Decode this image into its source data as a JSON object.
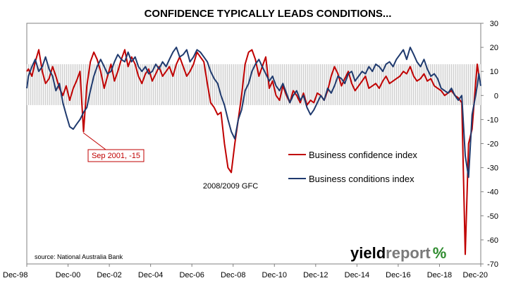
{
  "chart_data": {
    "type": "line",
    "title": "CONFIDENCE TYPICALLY LEADS CONDITIONS...",
    "x_tick_labels": [
      "Dec-98",
      "Dec-00",
      "Dec-02",
      "Dec-04",
      "Dec-06",
      "Dec-08",
      "Dec-10",
      "Dec-12",
      "Dec-14",
      "Dec-16",
      "Dec-18",
      "Dec-20"
    ],
    "x_ticks": [
      1998.92,
      2000.92,
      2002.92,
      2004.92,
      2006.92,
      2008.92,
      2010.92,
      2012.92,
      2014.92,
      2016.92,
      2018.92,
      2020.92
    ],
    "xlim": [
      1998.92,
      2020.92
    ],
    "ylim": [
      -70,
      30
    ],
    "y_ticks": [
      30,
      20,
      10,
      0,
      -10,
      -20,
      -30,
      -40,
      -50,
      -60,
      -70
    ],
    "y_axis_side": "right",
    "grid": "none",
    "legend_placement": "center-right",
    "series": [
      {
        "name": "Business confidence index",
        "color": "#c00000",
        "points": [
          [
            1998.92,
            10
          ],
          [
            1999.0,
            11
          ],
          [
            1999.17,
            8
          ],
          [
            1999.33,
            14
          ],
          [
            1999.5,
            19
          ],
          [
            1999.67,
            10
          ],
          [
            1999.83,
            5
          ],
          [
            2000.0,
            7
          ],
          [
            2000.17,
            12
          ],
          [
            2000.33,
            8
          ],
          [
            2000.5,
            3
          ],
          [
            2000.67,
            0
          ],
          [
            2000.83,
            4
          ],
          [
            2001.0,
            -2
          ],
          [
            2001.17,
            3
          ],
          [
            2001.33,
            6
          ],
          [
            2001.5,
            10
          ],
          [
            2001.67,
            -15
          ],
          [
            2001.83,
            4
          ],
          [
            2002.0,
            14
          ],
          [
            2002.17,
            18
          ],
          [
            2002.33,
            15
          ],
          [
            2002.5,
            10
          ],
          [
            2002.67,
            3
          ],
          [
            2002.83,
            8
          ],
          [
            2003.0,
            13
          ],
          [
            2003.17,
            6
          ],
          [
            2003.33,
            10
          ],
          [
            2003.5,
            15
          ],
          [
            2003.67,
            19
          ],
          [
            2003.83,
            12
          ],
          [
            2004.0,
            16
          ],
          [
            2004.17,
            13
          ],
          [
            2004.33,
            8
          ],
          [
            2004.5,
            5
          ],
          [
            2004.67,
            9
          ],
          [
            2004.83,
            11
          ],
          [
            2005.0,
            6
          ],
          [
            2005.17,
            9
          ],
          [
            2005.33,
            12
          ],
          [
            2005.5,
            8
          ],
          [
            2005.67,
            10
          ],
          [
            2005.83,
            12
          ],
          [
            2006.0,
            8
          ],
          [
            2006.17,
            13
          ],
          [
            2006.33,
            16
          ],
          [
            2006.5,
            12
          ],
          [
            2006.67,
            8
          ],
          [
            2006.83,
            10
          ],
          [
            2007.0,
            13
          ],
          [
            2007.17,
            18
          ],
          [
            2007.33,
            16
          ],
          [
            2007.5,
            14
          ],
          [
            2007.67,
            5
          ],
          [
            2007.83,
            -3
          ],
          [
            2008.0,
            -5
          ],
          [
            2008.17,
            -8
          ],
          [
            2008.33,
            -7
          ],
          [
            2008.5,
            -20
          ],
          [
            2008.67,
            -30
          ],
          [
            2008.83,
            -32
          ],
          [
            2009.0,
            -20
          ],
          [
            2009.17,
            -10
          ],
          [
            2009.33,
            0
          ],
          [
            2009.5,
            13
          ],
          [
            2009.67,
            18
          ],
          [
            2009.83,
            19
          ],
          [
            2010.0,
            15
          ],
          [
            2010.17,
            8
          ],
          [
            2010.33,
            12
          ],
          [
            2010.5,
            16
          ],
          [
            2010.67,
            3
          ],
          [
            2010.83,
            6
          ],
          [
            2011.0,
            0
          ],
          [
            2011.17,
            -2
          ],
          [
            2011.33,
            4
          ],
          [
            2011.5,
            0
          ],
          [
            2011.67,
            -3
          ],
          [
            2011.83,
            2
          ],
          [
            2012.0,
            0
          ],
          [
            2012.17,
            -3
          ],
          [
            2012.33,
            1
          ],
          [
            2012.5,
            -4
          ],
          [
            2012.67,
            -2
          ],
          [
            2012.83,
            -3
          ],
          [
            2013.0,
            1
          ],
          [
            2013.17,
            0
          ],
          [
            2013.33,
            -2
          ],
          [
            2013.5,
            2
          ],
          [
            2013.67,
            8
          ],
          [
            2013.83,
            12
          ],
          [
            2014.0,
            9
          ],
          [
            2014.17,
            4
          ],
          [
            2014.33,
            7
          ],
          [
            2014.5,
            10
          ],
          [
            2014.67,
            5
          ],
          [
            2014.83,
            2
          ],
          [
            2015.0,
            4
          ],
          [
            2015.17,
            6
          ],
          [
            2015.33,
            8
          ],
          [
            2015.5,
            3
          ],
          [
            2015.67,
            4
          ],
          [
            2015.83,
            5
          ],
          [
            2016.0,
            3
          ],
          [
            2016.17,
            6
          ],
          [
            2016.33,
            8
          ],
          [
            2016.5,
            5
          ],
          [
            2016.67,
            6
          ],
          [
            2016.83,
            7
          ],
          [
            2017.0,
            8
          ],
          [
            2017.17,
            10
          ],
          [
            2017.33,
            9
          ],
          [
            2017.5,
            12
          ],
          [
            2017.67,
            8
          ],
          [
            2017.83,
            6
          ],
          [
            2018.0,
            7
          ],
          [
            2018.17,
            9
          ],
          [
            2018.33,
            6
          ],
          [
            2018.5,
            7
          ],
          [
            2018.67,
            4
          ],
          [
            2018.83,
            3
          ],
          [
            2019.0,
            2
          ],
          [
            2019.17,
            0
          ],
          [
            2019.33,
            1
          ],
          [
            2019.5,
            2
          ],
          [
            2019.67,
            0
          ],
          [
            2019.83,
            -1
          ],
          [
            2020.0,
            -3
          ],
          [
            2020.17,
            -66
          ],
          [
            2020.33,
            -20
          ],
          [
            2020.5,
            -14
          ],
          [
            2020.67,
            5
          ],
          [
            2020.75,
            13
          ],
          [
            2020.83,
            8
          ]
        ]
      },
      {
        "name": "Business conditions index",
        "color": "#1f3a6e",
        "points": [
          [
            1998.92,
            3
          ],
          [
            1999.0,
            8
          ],
          [
            1999.17,
            12
          ],
          [
            1999.33,
            15
          ],
          [
            1999.5,
            10
          ],
          [
            1999.67,
            12
          ],
          [
            1999.83,
            16
          ],
          [
            2000.0,
            11
          ],
          [
            2000.17,
            8
          ],
          [
            2000.33,
            2
          ],
          [
            2000.5,
            5
          ],
          [
            2000.67,
            -3
          ],
          [
            2000.83,
            -8
          ],
          [
            2001.0,
            -13
          ],
          [
            2001.17,
            -14
          ],
          [
            2001.33,
            -12
          ],
          [
            2001.5,
            -10
          ],
          [
            2001.67,
            -7
          ],
          [
            2001.83,
            -5
          ],
          [
            2002.0,
            2
          ],
          [
            2002.17,
            8
          ],
          [
            2002.33,
            12
          ],
          [
            2002.5,
            15
          ],
          [
            2002.67,
            12
          ],
          [
            2002.83,
            9
          ],
          [
            2003.0,
            10
          ],
          [
            2003.17,
            14
          ],
          [
            2003.33,
            17
          ],
          [
            2003.5,
            15
          ],
          [
            2003.67,
            14
          ],
          [
            2003.83,
            18
          ],
          [
            2004.0,
            14
          ],
          [
            2004.17,
            16
          ],
          [
            2004.33,
            12
          ],
          [
            2004.5,
            10
          ],
          [
            2004.67,
            12
          ],
          [
            2004.83,
            9
          ],
          [
            2005.0,
            10
          ],
          [
            2005.17,
            13
          ],
          [
            2005.33,
            11
          ],
          [
            2005.5,
            14
          ],
          [
            2005.67,
            12
          ],
          [
            2005.83,
            15
          ],
          [
            2006.0,
            18
          ],
          [
            2006.17,
            20
          ],
          [
            2006.33,
            16
          ],
          [
            2006.5,
            17
          ],
          [
            2006.67,
            19
          ],
          [
            2006.83,
            14
          ],
          [
            2007.0,
            16
          ],
          [
            2007.17,
            19
          ],
          [
            2007.33,
            18
          ],
          [
            2007.5,
            16
          ],
          [
            2007.67,
            14
          ],
          [
            2007.83,
            10
          ],
          [
            2008.0,
            7
          ],
          [
            2008.17,
            5
          ],
          [
            2008.33,
            0
          ],
          [
            2008.5,
            -4
          ],
          [
            2008.67,
            -10
          ],
          [
            2008.83,
            -15
          ],
          [
            2009.0,
            -18
          ],
          [
            2009.17,
            -10
          ],
          [
            2009.33,
            -6
          ],
          [
            2009.5,
            2
          ],
          [
            2009.67,
            5
          ],
          [
            2009.83,
            10
          ],
          [
            2010.0,
            13
          ],
          [
            2010.17,
            15
          ],
          [
            2010.33,
            12
          ],
          [
            2010.5,
            9
          ],
          [
            2010.67,
            6
          ],
          [
            2010.83,
            8
          ],
          [
            2011.0,
            4
          ],
          [
            2011.17,
            2
          ],
          [
            2011.33,
            5
          ],
          [
            2011.5,
            1
          ],
          [
            2011.67,
            -3
          ],
          [
            2011.83,
            0
          ],
          [
            2012.0,
            2
          ],
          [
            2012.17,
            -2
          ],
          [
            2012.33,
            0
          ],
          [
            2012.5,
            -5
          ],
          [
            2012.67,
            -8
          ],
          [
            2012.83,
            -6
          ],
          [
            2013.0,
            -3
          ],
          [
            2013.17,
            0
          ],
          [
            2013.33,
            -2
          ],
          [
            2013.5,
            3
          ],
          [
            2013.67,
            1
          ],
          [
            2013.83,
            4
          ],
          [
            2014.0,
            8
          ],
          [
            2014.17,
            7
          ],
          [
            2014.33,
            5
          ],
          [
            2014.5,
            9
          ],
          [
            2014.67,
            10
          ],
          [
            2014.83,
            6
          ],
          [
            2015.0,
            8
          ],
          [
            2015.17,
            10
          ],
          [
            2015.33,
            9
          ],
          [
            2015.5,
            12
          ],
          [
            2015.67,
            10
          ],
          [
            2015.83,
            13
          ],
          [
            2016.0,
            12
          ],
          [
            2016.17,
            10
          ],
          [
            2016.33,
            13
          ],
          [
            2016.5,
            14
          ],
          [
            2016.67,
            12
          ],
          [
            2016.83,
            15
          ],
          [
            2017.0,
            17
          ],
          [
            2017.17,
            19
          ],
          [
            2017.33,
            15
          ],
          [
            2017.5,
            20
          ],
          [
            2017.67,
            17
          ],
          [
            2017.83,
            14
          ],
          [
            2018.0,
            12
          ],
          [
            2018.17,
            15
          ],
          [
            2018.33,
            11
          ],
          [
            2018.5,
            8
          ],
          [
            2018.67,
            9
          ],
          [
            2018.83,
            7
          ],
          [
            2019.0,
            3
          ],
          [
            2019.17,
            2
          ],
          [
            2019.33,
            1
          ],
          [
            2019.5,
            3
          ],
          [
            2019.67,
            0
          ],
          [
            2019.83,
            -2
          ],
          [
            2020.0,
            0
          ],
          [
            2020.17,
            -25
          ],
          [
            2020.33,
            -34
          ],
          [
            2020.5,
            -8
          ],
          [
            2020.67,
            0
          ],
          [
            2020.75,
            4
          ],
          [
            2020.83,
            9
          ],
          [
            2020.92,
            4
          ]
        ]
      }
    ],
    "annotations": {
      "callout": "Sep 2001, -15",
      "gfc": "2008/2009 GFC"
    },
    "band": {
      "label": "",
      "y_range": [
        -4,
        13
      ],
      "color": "#d9d9d9"
    }
  },
  "source_text": "source: National Australia Bank",
  "logo": {
    "part1": "yield",
    "part2": "report",
    "part3": "%",
    "color1": "#000000",
    "color2": "#7a7a7a",
    "color3": "#2e8b2e"
  }
}
